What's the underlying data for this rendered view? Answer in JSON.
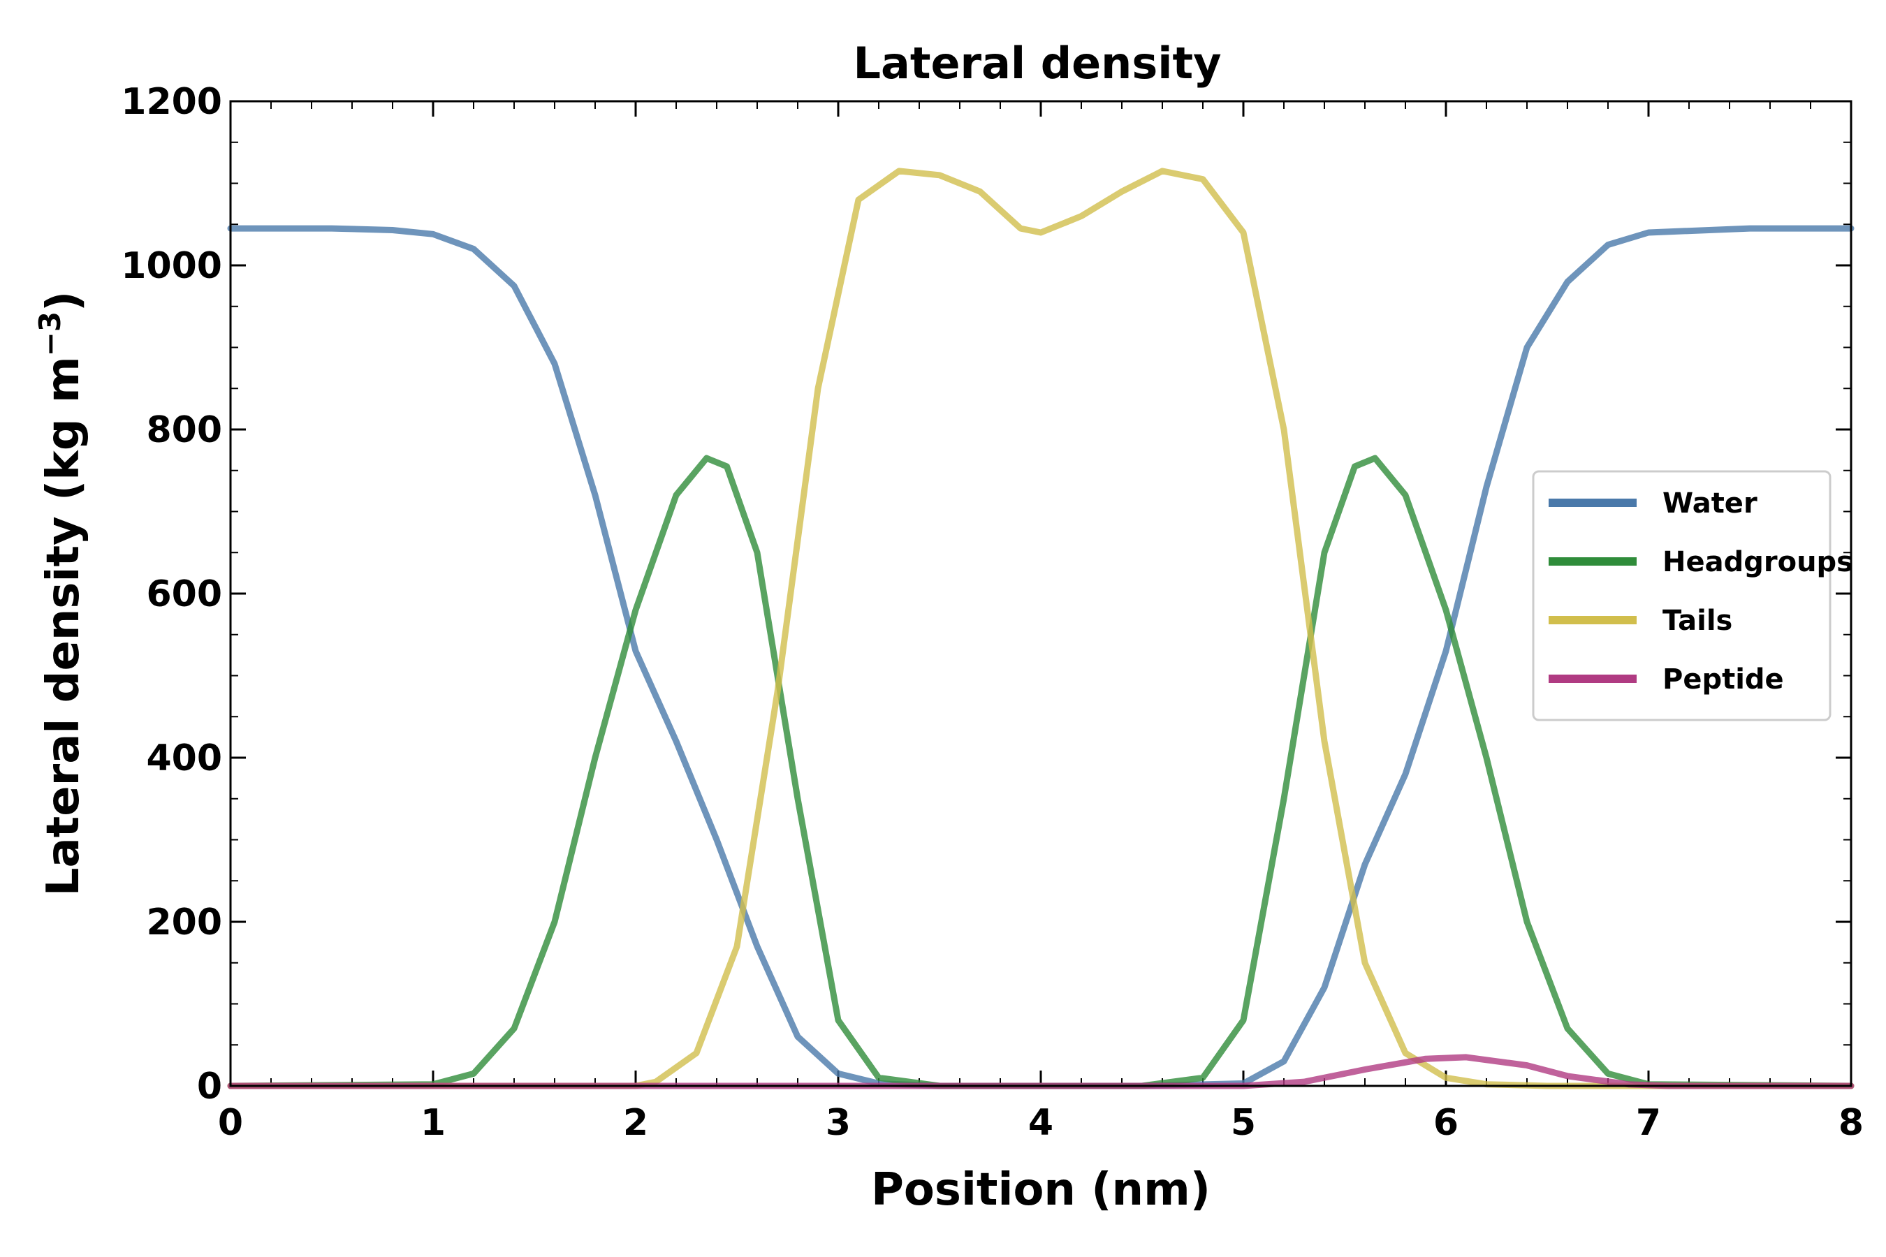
{
  "chart_data": {
    "type": "line",
    "title": "Lateral density",
    "xlabel": "Position (nm)",
    "ylabel_main": "Lateral density (kg m",
    "ylabel_sup": "−3",
    "ylabel_close": ")",
    "xlim": [
      0,
      8
    ],
    "ylim": [
      0,
      1200
    ],
    "xticks": [
      0,
      1,
      2,
      3,
      4,
      5,
      6,
      7,
      8
    ],
    "xtick_labels": [
      "0",
      "1",
      "2",
      "3",
      "4",
      "5",
      "6",
      "7",
      "8"
    ],
    "yticks": [
      0,
      200,
      400,
      600,
      800,
      1000,
      1200
    ],
    "ytick_labels": [
      "0",
      "200",
      "400",
      "600",
      "800",
      "1000",
      "1200"
    ],
    "grid": false,
    "legend_position": "center-right",
    "series": [
      {
        "name": "Water",
        "color": "#4a79aa",
        "points": [
          [
            0,
            1045
          ],
          [
            0.5,
            1045
          ],
          [
            0.8,
            1043
          ],
          [
            1.0,
            1038
          ],
          [
            1.2,
            1020
          ],
          [
            1.4,
            975
          ],
          [
            1.6,
            880
          ],
          [
            1.8,
            720
          ],
          [
            2.0,
            530
          ],
          [
            2.2,
            420
          ],
          [
            2.4,
            300
          ],
          [
            2.6,
            170
          ],
          [
            2.8,
            60
          ],
          [
            3.0,
            15
          ],
          [
            3.2,
            3
          ],
          [
            3.5,
            0
          ],
          [
            4.5,
            0
          ],
          [
            5.0,
            3
          ],
          [
            5.2,
            30
          ],
          [
            5.4,
            120
          ],
          [
            5.6,
            270
          ],
          [
            5.8,
            380
          ],
          [
            6.0,
            530
          ],
          [
            6.2,
            730
          ],
          [
            6.4,
            900
          ],
          [
            6.6,
            980
          ],
          [
            6.8,
            1025
          ],
          [
            7.0,
            1040
          ],
          [
            7.5,
            1045
          ],
          [
            8.0,
            1045
          ]
        ]
      },
      {
        "name": "Headgroups",
        "color": "#2f8c3a",
        "points": [
          [
            0,
            0
          ],
          [
            1.0,
            2
          ],
          [
            1.2,
            15
          ],
          [
            1.4,
            70
          ],
          [
            1.6,
            200
          ],
          [
            1.8,
            400
          ],
          [
            2.0,
            580
          ],
          [
            2.2,
            720
          ],
          [
            2.35,
            765
          ],
          [
            2.45,
            755
          ],
          [
            2.6,
            650
          ],
          [
            2.8,
            350
          ],
          [
            3.0,
            80
          ],
          [
            3.2,
            10
          ],
          [
            3.5,
            0
          ],
          [
            4.5,
            0
          ],
          [
            4.8,
            10
          ],
          [
            5.0,
            80
          ],
          [
            5.2,
            350
          ],
          [
            5.4,
            650
          ],
          [
            5.55,
            755
          ],
          [
            5.65,
            765
          ],
          [
            5.8,
            720
          ],
          [
            6.0,
            580
          ],
          [
            6.2,
            400
          ],
          [
            6.4,
            200
          ],
          [
            6.6,
            70
          ],
          [
            6.8,
            15
          ],
          [
            7.0,
            2
          ],
          [
            8.0,
            0
          ]
        ]
      },
      {
        "name": "Tails",
        "color": "#d1be4c",
        "points": [
          [
            0,
            0
          ],
          [
            2.0,
            0
          ],
          [
            2.1,
            5
          ],
          [
            2.3,
            40
          ],
          [
            2.5,
            170
          ],
          [
            2.7,
            480
          ],
          [
            2.9,
            850
          ],
          [
            3.1,
            1080
          ],
          [
            3.3,
            1115
          ],
          [
            3.5,
            1110
          ],
          [
            3.7,
            1090
          ],
          [
            3.9,
            1045
          ],
          [
            4.0,
            1040
          ],
          [
            4.2,
            1060
          ],
          [
            4.4,
            1090
          ],
          [
            4.6,
            1115
          ],
          [
            4.8,
            1105
          ],
          [
            5.0,
            1040
          ],
          [
            5.2,
            800
          ],
          [
            5.4,
            420
          ],
          [
            5.6,
            150
          ],
          [
            5.8,
            40
          ],
          [
            6.0,
            10
          ],
          [
            6.2,
            2
          ],
          [
            6.5,
            0
          ],
          [
            8.0,
            0
          ]
        ]
      },
      {
        "name": "Peptide",
        "color": "#b03b82",
        "points": [
          [
            0,
            0
          ],
          [
            5.0,
            0
          ],
          [
            5.3,
            5
          ],
          [
            5.6,
            20
          ],
          [
            5.9,
            33
          ],
          [
            6.1,
            35
          ],
          [
            6.4,
            25
          ],
          [
            6.6,
            12
          ],
          [
            6.9,
            2
          ],
          [
            7.1,
            0
          ],
          [
            8.0,
            0
          ]
        ]
      }
    ]
  }
}
